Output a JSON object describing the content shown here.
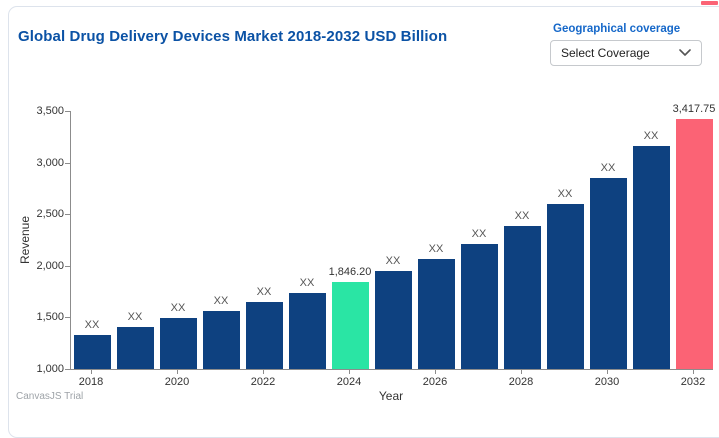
{
  "header": {
    "title": "Global Drug Delivery Devices Market 2018-2032 USD Billion",
    "title_color": "#0b52a5"
  },
  "coverage": {
    "label": "Geographical coverage",
    "label_color": "#1668c9",
    "selected": "Select Coverage",
    "chevron_icon": "chevron-down-icon"
  },
  "watermark": "CanvasJS Trial",
  "decor": {
    "top_right_fragment_color": "#fb6375",
    "card_border_color": "#dde3ec"
  },
  "chart_data": {
    "type": "bar",
    "title": "Global Drug Delivery Devices Market 2018-2032 USD Billion",
    "xlabel": "Year",
    "ylabel": "Revenue",
    "ylim": [
      1000,
      3500
    ],
    "ytick_interval": 500,
    "ytick_labels": [
      "1,000",
      "1,500",
      "2,000",
      "2,500",
      "3,000",
      "3,500"
    ],
    "xtick_labels": [
      "2018",
      "2020",
      "2022",
      "2024",
      "2026",
      "2028",
      "2030",
      "2032"
    ],
    "grid": false,
    "legend": false,
    "categories": [
      2018,
      2019,
      2020,
      2021,
      2022,
      2023,
      2024,
      2025,
      2026,
      2027,
      2028,
      2029,
      2030,
      2031,
      2032
    ],
    "values": [
      1330,
      1410,
      1490,
      1560,
      1650,
      1740,
      1846.2,
      1950,
      2070,
      2210,
      2390,
      2600,
      2850,
      3160,
      3417.75
    ],
    "bar_labels": [
      "XX",
      "XX",
      "XX",
      "XX",
      "XX",
      "XX",
      "1,846.20",
      "XX",
      "XX",
      "XX",
      "XX",
      "XX",
      "XX",
      "XX",
      "3,417.75"
    ],
    "bar_color_default": "#0e4180",
    "highlights": [
      {
        "year": 2024,
        "color": "#2ae5a4"
      },
      {
        "year": 2032,
        "color": "#fb6375"
      }
    ]
  }
}
